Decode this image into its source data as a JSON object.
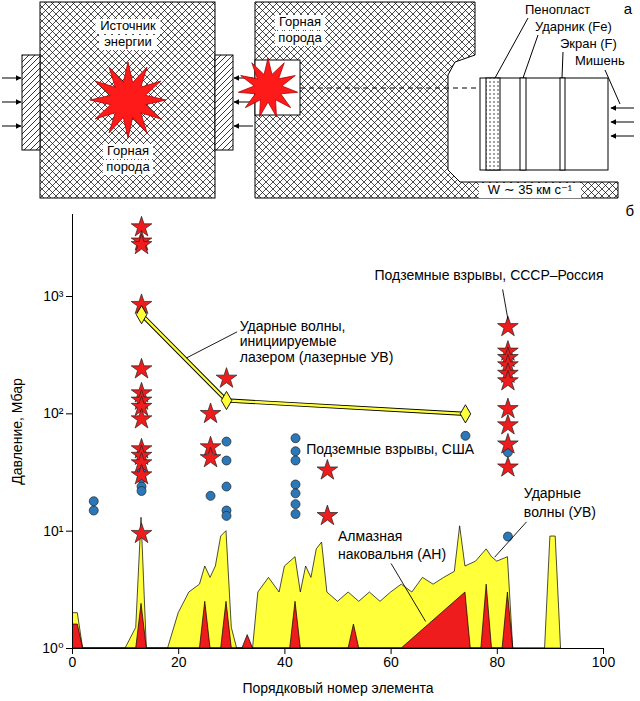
{
  "diagram": {
    "panel_label": "а",
    "left": {
      "source": "Источник энергии",
      "rock": "Горная порода"
    },
    "right": {
      "rock": "Горная порода",
      "foam": "Пенопласт",
      "impactor": "Ударник (Fe)",
      "screen": "Экран (F)",
      "target": "Мишень",
      "velocity": "W ∼ 35 км с⁻¹"
    }
  },
  "chart_data": {
    "type": "scatter",
    "panel_label": "б",
    "x_label": "Порядковый номер элемента",
    "y_label": "Давление, Мбар",
    "log": "y",
    "grid": false,
    "xlim": [
      0,
      100
    ],
    "xticks": [
      0,
      20,
      40,
      60,
      80,
      100
    ],
    "ylim": [
      1,
      5000
    ],
    "yticks": [
      {
        "value": 1,
        "label": "10⁰"
      },
      {
        "value": 10,
        "label": "10¹"
      },
      {
        "value": 100,
        "label": "10²"
      },
      {
        "value": 1000,
        "label": "10³"
      }
    ],
    "series": [
      {
        "name": "Ударные волны (УВ)",
        "type": "area",
        "color": "#ffff3a",
        "x": [
          0,
          1,
          2,
          10,
          12,
          13,
          14,
          18,
          20,
          22,
          24,
          25,
          26,
          27,
          28,
          29,
          30,
          31,
          34,
          35,
          37,
          39,
          40,
          42,
          43,
          44,
          45,
          46,
          47,
          48,
          50,
          52,
          54,
          56,
          58,
          60,
          62,
          64,
          66,
          68,
          70,
          72,
          73,
          74,
          76,
          78,
          79,
          80,
          82,
          83,
          89,
          90,
          91,
          92
        ],
        "values": [
          2,
          2,
          1,
          1,
          1.5,
          13,
          1,
          1,
          2,
          3,
          3.5,
          5,
          4,
          5,
          9,
          10,
          1.5,
          1,
          1,
          3,
          4,
          3,
          5,
          6,
          3,
          5,
          4,
          7,
          8,
          3,
          2.5,
          3,
          2.5,
          3,
          2.5,
          3,
          3.5,
          3,
          4,
          3.5,
          4,
          4.5,
          11,
          5,
          5.5,
          7,
          6,
          5.5,
          6,
          1,
          1,
          9,
          9,
          1
        ]
      },
      {
        "name": "Алмазная наковальня (АН)",
        "type": "area",
        "color": "#ee1c1c",
        "x": [
          0,
          1,
          2,
          12,
          13,
          14,
          24,
          25,
          26,
          28,
          29,
          30,
          32,
          33,
          34,
          41,
          42,
          43,
          52,
          53,
          54,
          62,
          74,
          75,
          77,
          78,
          79,
          81,
          82,
          83
        ],
        "values": [
          1.6,
          1.6,
          1,
          1,
          2.4,
          1,
          1,
          2.5,
          1,
          1,
          2.5,
          1,
          1,
          1.3,
          1,
          1,
          2.5,
          1,
          1,
          1.6,
          1,
          1,
          3,
          1,
          1,
          3.5,
          1,
          1,
          3,
          1
        ]
      },
      {
        "name": "Подземные взрывы, США",
        "type": "scatter",
        "marker": "circle",
        "color": "#2a78b8",
        "x": [
          4,
          4,
          13,
          13,
          13,
          13,
          26,
          29,
          29,
          29,
          29,
          29,
          42,
          42,
          42,
          42,
          42,
          42,
          42,
          74,
          82,
          82
        ],
        "values": [
          18,
          15,
          32,
          28,
          24,
          22,
          20,
          58,
          40,
          24,
          15,
          13.5,
          62,
          48,
          40,
          25,
          21,
          17,
          14,
          65,
          47,
          9
        ]
      },
      {
        "name": "Подземные взрывы, СССР–Россия",
        "type": "scatter",
        "marker": "star",
        "color": "#ee1c1c",
        "x": [
          13,
          13,
          13,
          13,
          13,
          13,
          13,
          13,
          13,
          13,
          13,
          13,
          13,
          13,
          26,
          26,
          26,
          29,
          48,
          48,
          82,
          82,
          82,
          82,
          82,
          82,
          82,
          82,
          82,
          82
        ],
        "values": [
          3900,
          2950,
          2750,
          850,
          240,
          150,
          130,
          115,
          90,
          50,
          44,
          38,
          30,
          9.5,
          100,
          52,
          42,
          200,
          33,
          13.5,
          550,
          340,
          300,
          260,
          220,
          190,
          110,
          80,
          55,
          35
        ]
      },
      {
        "name": "Ударные волны, инициируемые лазером (лазерные УВ)",
        "type": "line",
        "marker": "diamond",
        "line_style": "solid",
        "color": "#ffff3a",
        "x": [
          13,
          29,
          74
        ],
        "values": [
          700,
          130,
          100
        ]
      }
    ]
  }
}
